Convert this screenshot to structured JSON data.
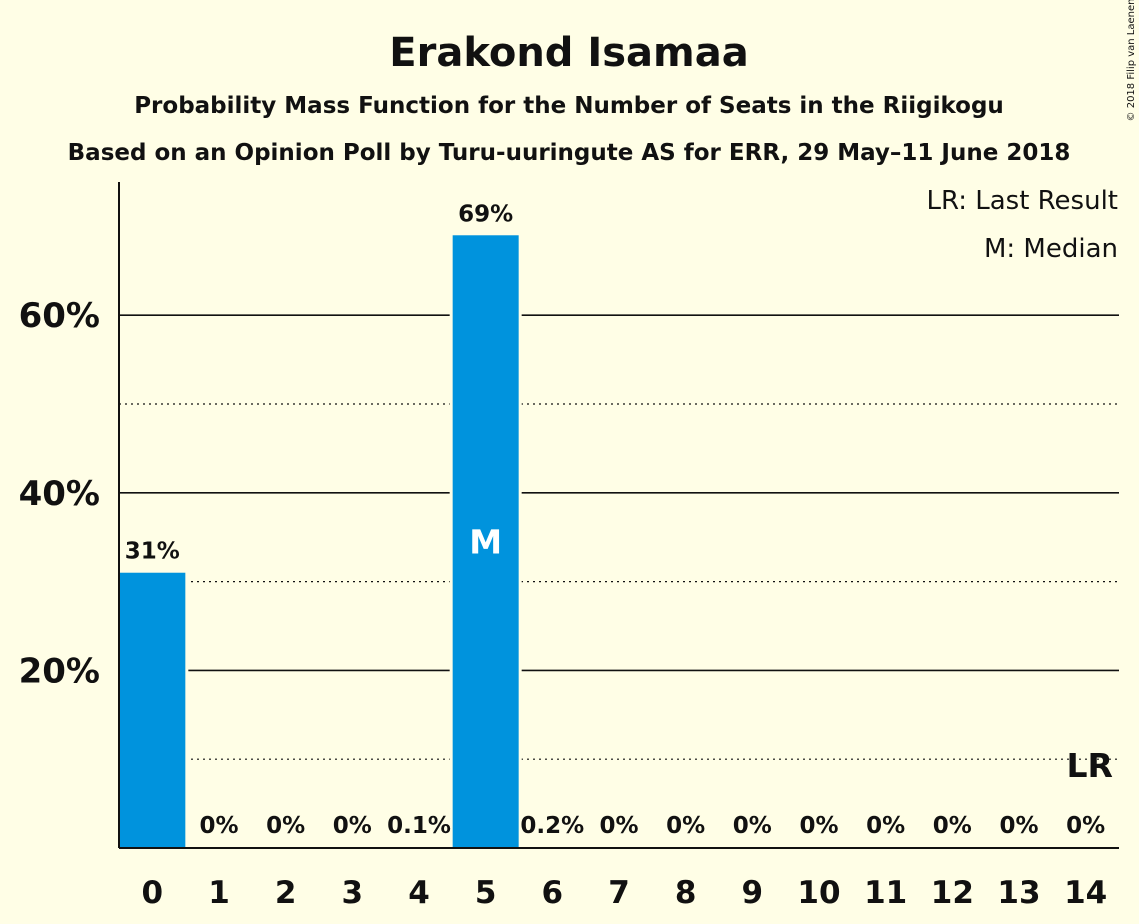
{
  "chart_data": {
    "type": "bar",
    "title": "Erakond Isamaa",
    "subtitle": "Probability Mass Function for the Number of Seats in the Riigikogu",
    "subtitle2": "Based on an Opinion Poll by Turu-uuringute AS for ERR, 29 May–11 June 2018",
    "categories": [
      "0",
      "1",
      "2",
      "3",
      "4",
      "5",
      "6",
      "7",
      "8",
      "9",
      "10",
      "11",
      "12",
      "13",
      "14"
    ],
    "values": [
      31,
      0,
      0,
      0,
      0.1,
      69,
      0.2,
      0,
      0,
      0,
      0,
      0,
      0,
      0,
      0
    ],
    "value_labels": [
      "31%",
      "0%",
      "0%",
      "0%",
      "0.1%",
      "69%",
      "0.2%",
      "0%",
      "0%",
      "0%",
      "0%",
      "0%",
      "0%",
      "0%",
      "0%"
    ],
    "ylim": [
      0,
      75
    ],
    "yticks": [
      20,
      40,
      60
    ],
    "ytick_labels": [
      "20%",
      "40%",
      "60%"
    ],
    "minor_gridlines": [
      10,
      30,
      50
    ],
    "legend": [
      "LR: Last Result",
      "M: Median"
    ],
    "legend_position": "top-right",
    "median_index": 5,
    "median_label": "M",
    "last_result_index": 14,
    "last_result_label": "LR",
    "last_result_value": 10,
    "bar_color": "#0093DD",
    "background_color": "#FFFEE6",
    "copyright": "© 2018 Filip van Laenen"
  }
}
